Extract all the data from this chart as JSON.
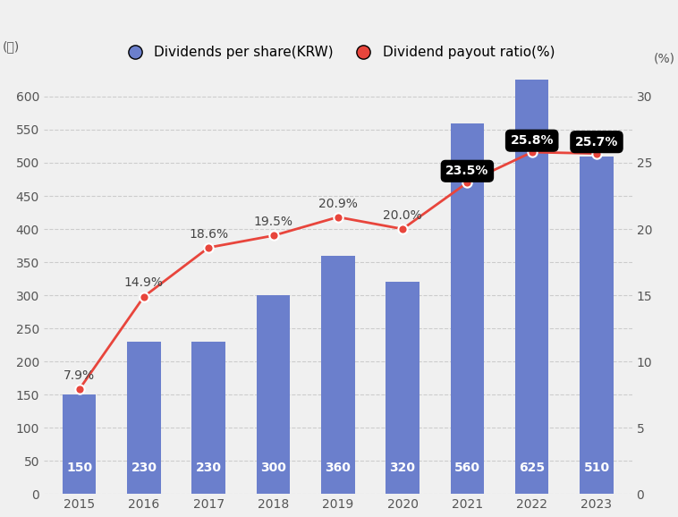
{
  "years": [
    2015,
    2016,
    2017,
    2018,
    2019,
    2020,
    2021,
    2022,
    2023
  ],
  "dividends": [
    150,
    230,
    230,
    300,
    360,
    320,
    560,
    625,
    510
  ],
  "payout_ratio": [
    7.9,
    14.9,
    18.6,
    19.5,
    20.9,
    20.0,
    23.5,
    25.8,
    25.7
  ],
  "payout_labels": [
    "7.9%",
    "14.9%",
    "18.6%",
    "19.5%",
    "20.9%",
    "20.0%",
    "23.5%",
    "25.8%",
    "25.7%"
  ],
  "highlighted_indices": [
    6,
    7,
    8
  ],
  "bar_color": "#6B7FCC",
  "line_color": "#E8453C",
  "marker_fill": "#E8453C",
  "background_color": "#F0F0F0",
  "ylabel_left": "(원)",
  "ylabel_right": "(%)",
  "ylim_left": [
    0,
    650
  ],
  "ylim_right": [
    0,
    32.5
  ],
  "yticks_left": [
    0,
    50,
    100,
    150,
    200,
    250,
    300,
    350,
    400,
    450,
    500,
    550,
    600
  ],
  "yticks_right": [
    0,
    5,
    10,
    15,
    20,
    25,
    30
  ],
  "legend_bar_label": "Dividends per share(KRW)",
  "legend_line_label": "Dividend payout ratio(%)",
  "label_fontsize": 10,
  "tick_fontsize": 10,
  "bar_label_fontsize": 10
}
